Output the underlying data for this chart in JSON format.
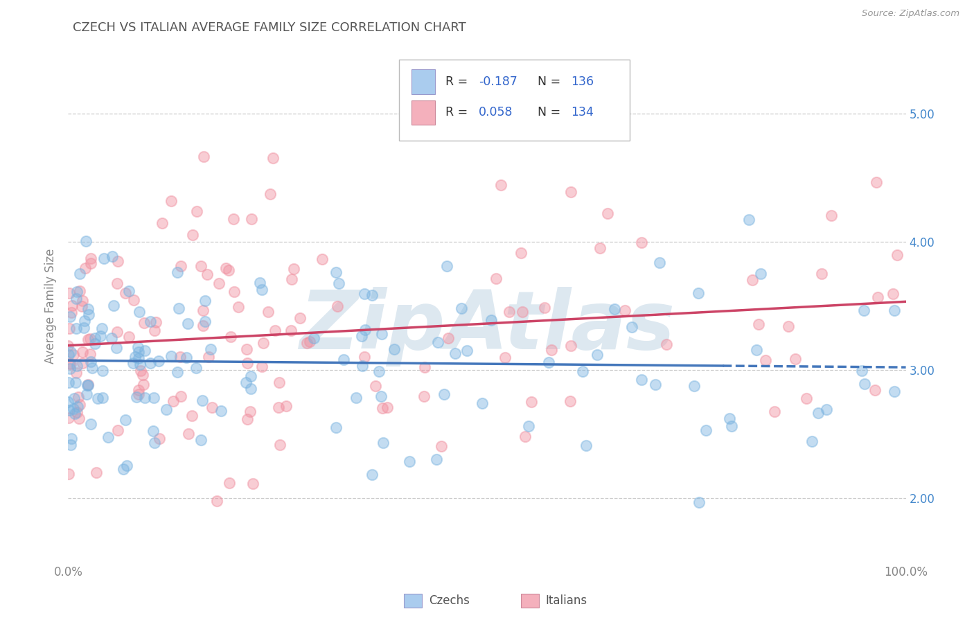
{
  "title": "CZECH VS ITALIAN AVERAGE FAMILY SIZE CORRELATION CHART",
  "source": "Source: ZipAtlas.com",
  "ylabel": "Average Family Size",
  "czech_R": -0.187,
  "czech_N": 136,
  "italian_R": 0.058,
  "italian_N": 134,
  "czech_dot_color": "#7ab3e0",
  "italian_dot_color": "#f090a0",
  "czech_trend_color": "#4477bb",
  "italian_trend_color": "#cc4466",
  "czech_legend_color": "#aaccee",
  "italian_legend_color": "#f4b0bc",
  "bg_color": "#ffffff",
  "grid_color": "#cccccc",
  "title_color": "#555555",
  "legend_num_color": "#3366cc",
  "legend_label_color": "#333333",
  "watermark_color": "#dde8f0",
  "xlim": [
    0.0,
    1.0
  ],
  "ylim": [
    1.5,
    5.5
  ],
  "yticks": [
    2.0,
    3.0,
    4.0,
    5.0
  ],
  "right_ytick_labels": [
    "2.00",
    "3.00",
    "4.00",
    "5.00"
  ],
  "trend_split_x": 0.78
}
